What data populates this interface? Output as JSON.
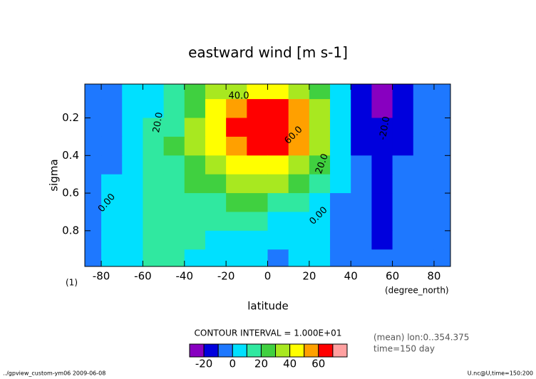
{
  "chart_data": {
    "type": "contour",
    "title": "eastward wind [m s-1]",
    "x_label": "latitude",
    "y_label": "sigma",
    "x_unit": "(degree_north)",
    "y_unit": "(1)",
    "xlim": [
      -87.9,
      87.9
    ],
    "ylim": [
      0.02,
      0.99
    ],
    "y_inverted": true,
    "grid": false,
    "xticks": [
      -80,
      -60,
      -40,
      -20,
      0,
      20,
      40,
      60,
      80
    ],
    "yticks": [
      0.2,
      0.4,
      0.6,
      0.8
    ],
    "x": [
      -85,
      -75,
      -65,
      -55,
      -45,
      -35,
      -25,
      -15,
      -5,
      5,
      15,
      25,
      35,
      45,
      55,
      65,
      75,
      85
    ],
    "y": [
      0.05,
      0.15,
      0.25,
      0.35,
      0.45,
      0.55,
      0.65,
      0.75,
      0.85,
      0.95
    ],
    "z": [
      [
        -5,
        -2,
        2,
        6,
        12,
        20,
        30,
        38,
        40,
        40,
        35,
        25,
        5,
        -15,
        -25,
        -20,
        -10,
        -8
      ],
      [
        -5,
        -3,
        3,
        8,
        15,
        25,
        40,
        55,
        62,
        62,
        52,
        35,
        5,
        -15,
        -22,
        -18,
        -10,
        -8
      ],
      [
        -6,
        -3,
        4,
        10,
        18,
        30,
        45,
        62,
        68,
        66,
        55,
        35,
        5,
        -12,
        -20,
        -15,
        -8,
        -6
      ],
      [
        -8,
        -3,
        5,
        12,
        20,
        30,
        42,
        58,
        64,
        62,
        50,
        30,
        3,
        -12,
        -18,
        -12,
        -8,
        -6
      ],
      [
        -6,
        -2,
        6,
        14,
        18,
        25,
        35,
        45,
        48,
        45,
        38,
        22,
        2,
        -10,
        -15,
        -10,
        -7,
        -5
      ],
      [
        -4,
        0,
        6,
        14,
        16,
        20,
        25,
        32,
        35,
        32,
        25,
        12,
        0,
        -10,
        -13,
        -9,
        -6,
        -5
      ],
      [
        -2,
        2,
        6,
        14,
        15,
        16,
        18,
        20,
        22,
        18,
        12,
        6,
        -2,
        -9,
        -12,
        -8,
        -5,
        -5
      ],
      [
        -5,
        2,
        5,
        12,
        14,
        14,
        13,
        12,
        10,
        8,
        5,
        2,
        -3,
        -9,
        -12,
        -7,
        -4,
        -5
      ],
      [
        -6,
        3,
        5,
        12,
        13,
        12,
        9,
        6,
        5,
        3,
        2,
        0,
        -4,
        -9,
        -11,
        -5,
        -3,
        -4
      ],
      [
        -6,
        3,
        5,
        12,
        12,
        8,
        5,
        3,
        0,
        -2,
        1,
        0,
        -4,
        -8,
        -10,
        -4,
        -3,
        -3
      ]
    ],
    "contour_labels": [
      "40.0",
      "20.0",
      "60.0",
      "20.0",
      "0.00",
      "0.00",
      "-20.0"
    ],
    "colorbar": {
      "title": "CONTOUR INTERVAL = 1.000E+01",
      "levels": [
        -30,
        -20,
        -10,
        0,
        10,
        20,
        30,
        40,
        50,
        60,
        70,
        80
      ],
      "colors": [
        "#8800c0",
        "#0000dd",
        "#1e78ff",
        "#00e0ff",
        "#30e8a0",
        "#40d040",
        "#a8e820",
        "#ffff00",
        "#ffa000",
        "#ff0000",
        "#ffa0a0"
      ],
      "ticks": [
        -20,
        0,
        20,
        40,
        60
      ]
    },
    "notes": [
      "(mean) lon:0..354.375",
      "time=150 day"
    ],
    "footer_left": "../gpview_custom-ym06  2009-06-08",
    "footer_right": "U.nc@U,time=150:200"
  }
}
